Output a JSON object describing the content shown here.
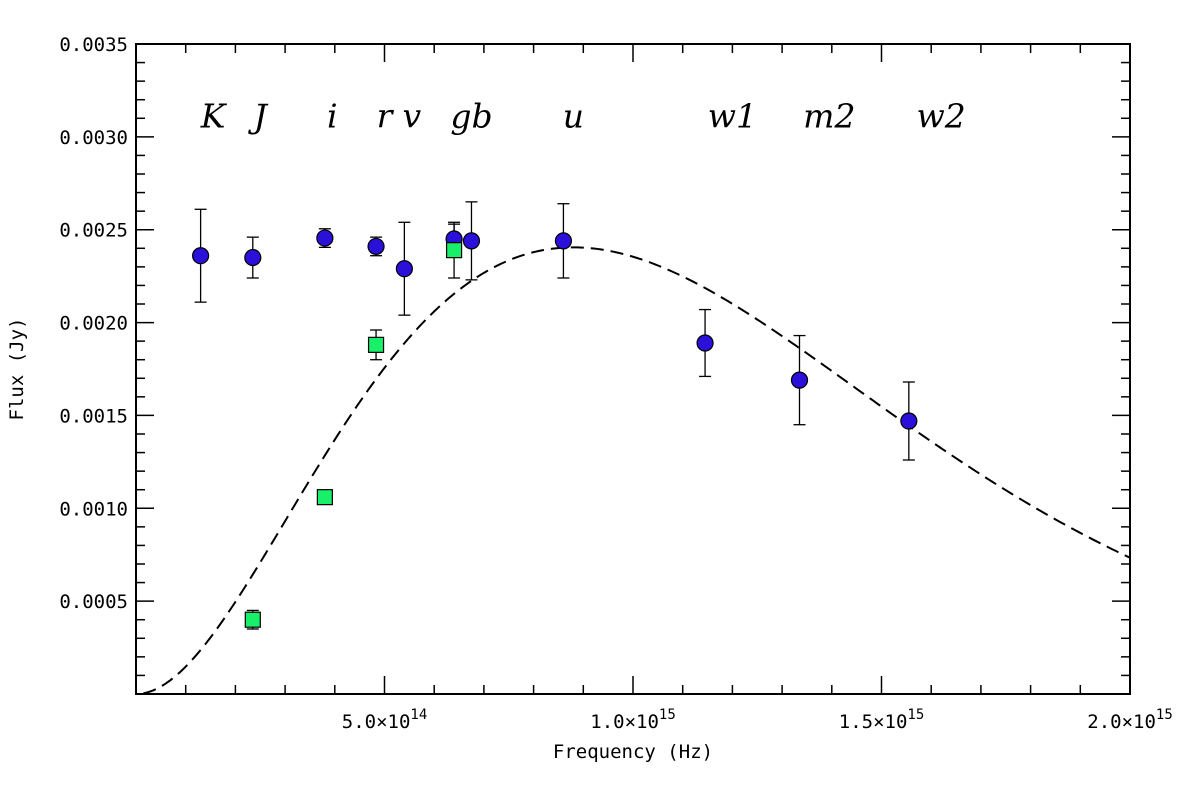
{
  "chart_data": {
    "type": "scatter",
    "title": "",
    "xlabel": "Frequency (Hz)",
    "ylabel": "Flux (Jy)",
    "xlim": [
      0,
      2000000000000000
    ],
    "ylim": [
      0,
      0.0035
    ],
    "grid": false,
    "legend": "none",
    "x_tick_values": [
      500000000000000,
      1000000000000000,
      1500000000000000,
      2000000000000000
    ],
    "x_tick_labels": [
      {
        "mantissa": "5.0×10",
        "exp": "14"
      },
      {
        "mantissa": "1.0×10",
        "exp": "15"
      },
      {
        "mantissa": "1.5×10",
        "exp": "15"
      },
      {
        "mantissa": "2.0×10",
        "exp": "15"
      }
    ],
    "y_tick_values": [
      0.0005,
      0.001,
      0.0015,
      0.002,
      0.0025,
      0.003,
      0.0035
    ],
    "y_tick_labels": [
      "0.0005",
      "0.0010",
      "0.0015",
      "0.0020",
      "0.0025",
      "0.0030",
      "0.0035"
    ],
    "band_labels": [
      {
        "text": "K",
        "x": 155000000000000
      },
      {
        "text": "J",
        "x": 250000000000000
      },
      {
        "text": "i",
        "x": 395000000000000
      },
      {
        "text": "r",
        "x": 500000000000000
      },
      {
        "text": "v",
        "x": 555000000000000
      },
      {
        "text": "gb",
        "x": 675000000000000
      },
      {
        "text": "u",
        "x": 880000000000000
      },
      {
        "text": "w1",
        "x": 1200000000000000
      },
      {
        "text": "m2",
        "x": 1395000000000000
      },
      {
        "text": "w2",
        "x": 1620000000000000
      }
    ],
    "band_label_y": 0.00305,
    "series": [
      {
        "marker": "circle",
        "color": "#2a10d8",
        "points": [
          {
            "x": 130000000000000,
            "y": 0.00236,
            "err": 0.00025
          },
          {
            "x": 235000000000000,
            "y": 0.00235,
            "err": 0.00011
          },
          {
            "x": 380000000000000,
            "y": 0.002455,
            "err": 5e-05
          },
          {
            "x": 483000000000000,
            "y": 0.00241,
            "err": 5e-05
          },
          {
            "x": 540000000000000,
            "y": 0.00229,
            "err": 0.00025
          },
          {
            "x": 640000000000000,
            "y": 0.00245,
            "err": 8e-05
          },
          {
            "x": 675000000000000,
            "y": 0.00244,
            "err": 0.00021
          },
          {
            "x": 860000000000000,
            "y": 0.00244,
            "err": 0.0002
          },
          {
            "x": 1145000000000000,
            "y": 0.00189,
            "err": 0.00018
          },
          {
            "x": 1335000000000000,
            "y": 0.00169,
            "err": 0.00024
          },
          {
            "x": 1555000000000000,
            "y": 0.00147,
            "err": 0.00021
          }
        ]
      },
      {
        "marker": "square",
        "color": "#19f06a",
        "points": [
          {
            "x": 235000000000000,
            "y": 0.0004,
            "err": 5e-05
          },
          {
            "x": 380000000000000,
            "y": 0.00106,
            "err": 0.0
          },
          {
            "x": 483000000000000,
            "y": 0.00188,
            "err": 8e-05
          },
          {
            "x": 640000000000000,
            "y": 0.00239,
            "err": 0.00015
          }
        ]
      }
    ],
    "model_curve": {
      "style": "dashed",
      "color": "#000000",
      "peak_x": 880000000000000,
      "peak_y": 0.002405,
      "x_start": 15000000000000,
      "x_end": 2000000000000000
    }
  }
}
